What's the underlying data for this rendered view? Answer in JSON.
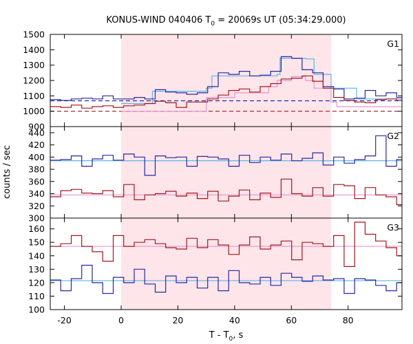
{
  "chart_data": {
    "type": "line",
    "title": {
      "main": "KONUS-WIND 040406 T",
      "sub": "0",
      "rest": " = 20069s UT (05:34:29.000)"
    },
    "xlabel": {
      "main": "T - T",
      "sub": "0",
      "rest": ", s"
    },
    "ylabel": "counts / sec",
    "xlim": [
      -25,
      99
    ],
    "xticks": [
      -20,
      0,
      20,
      40,
      60,
      80
    ],
    "shaded_interval": [
      0,
      74
    ],
    "colors": {
      "blue": "#2626a6",
      "red": "#a3161c",
      "lightblue": "#5cb4e8",
      "pink": "#e494d4",
      "shade": "#fde5e9"
    },
    "panels": [
      {
        "label": "G1",
        "ylim": [
          900,
          1500
        ],
        "yticks": [
          900,
          1000,
          1100,
          1200,
          1300,
          1400,
          1500
        ],
        "series": [
          {
            "color": "blue",
            "x": [
              -25,
              -21.3,
              -17.6,
              -13.9,
              -10.2,
              -6.5,
              -2.8,
              0.9,
              4.6,
              8.3,
              12,
              15.7,
              19.4,
              23.1,
              26.8,
              30.5,
              34.2,
              37.9,
              41.6,
              45.3,
              49,
              52.7,
              56.4,
              60.1,
              63.8,
              67.5,
              71.2,
              74.9,
              78.6,
              82.3,
              86,
              89.7,
              93.4,
              97.1
            ],
            "y": [
              1075,
              1070,
              1080,
              1085,
              1080,
              1100,
              1080,
              1080,
              1090,
              1080,
              1140,
              1125,
              1120,
              1110,
              1120,
              1160,
              1250,
              1240,
              1260,
              1230,
              1235,
              1260,
              1355,
              1345,
              1270,
              1250,
              1160,
              1145,
              1080,
              1085,
              1135,
              1100,
              1120,
              1090
            ]
          },
          {
            "color": "red",
            "x": [
              -25,
              -21.3,
              -17.6,
              -13.9,
              -10.2,
              -6.5,
              -2.8,
              0.9,
              4.6,
              8.3,
              12,
              15.7,
              19.4,
              23.1,
              26.8,
              30.5,
              34.2,
              37.9,
              41.6,
              45.3,
              49,
              52.7,
              56.4,
              60.1,
              63.8,
              67.5,
              71.2,
              74.9,
              78.6,
              82.3,
              86,
              89.7,
              93.4,
              97.1
            ],
            "y": [
              1030,
              1025,
              1040,
              1020,
              1030,
              1035,
              1025,
              1035,
              1040,
              1050,
              1065,
              1055,
              1025,
              1060,
              1060,
              1080,
              1105,
              1135,
              1145,
              1125,
              1160,
              1180,
              1210,
              1215,
              1230,
              1195,
              1150,
              1090,
              1070,
              1060,
              1055,
              1075,
              1080,
              1070
            ]
          },
          {
            "color": "lightblue",
            "x": [
              0,
              11,
              30,
              32,
              55,
              56,
              65,
              68,
              74,
              76,
              83,
              96,
              99
            ],
            "y": [
              1050,
              1130,
              1150,
              1230,
              1240,
              1345,
              1340,
              1240,
              1150,
              1150,
              1080,
              1080,
              1080
            ]
          },
          {
            "color": "pink",
            "x": [
              0,
              20,
              30,
              40,
              52,
              55,
              60,
              65,
              68,
              74,
              76,
              99
            ],
            "y": [
              1000,
              1000,
              1090,
              1120,
              1160,
              1200,
              1225,
              1200,
              1150,
              1060,
              1030,
              1030
            ]
          },
          {
            "color": "blue",
            "dash": "6,4",
            "x": [
              -25,
              99
            ],
            "y": [
              1068,
              1068
            ]
          },
          {
            "color": "red",
            "dash": "6,4",
            "x": [
              -25,
              99
            ],
            "y": [
              1000,
              1000
            ]
          }
        ]
      },
      {
        "label": "G2",
        "ylim": [
          300,
          450
        ],
        "yticks": [
          300,
          320,
          340,
          360,
          380,
          400,
          420,
          440
        ],
        "series": [
          {
            "color": "blue",
            "x": [
              -25,
              -21.3,
              -17.6,
              -13.9,
              -10.2,
              -6.5,
              -2.8,
              0.9,
              4.6,
              8.3,
              12,
              15.7,
              19.4,
              23.1,
              26.8,
              30.5,
              34.2,
              37.9,
              41.6,
              45.3,
              49,
              52.7,
              56.4,
              60.1,
              63.8,
              67.5,
              71.2,
              74.9,
              78.6,
              82.3,
              86,
              89.7,
              93.4,
              97.1
            ],
            "y": [
              395,
              396,
              402,
              385,
              397,
              403,
              395,
              405,
              400,
              370,
              402,
              399,
              400,
              385,
              401,
              400,
              397,
              385,
              403,
              391,
              400,
              395,
              405,
              394,
              398,
              407,
              387,
              400,
              390,
              396,
              402,
              435,
              385,
              396
            ]
          },
          {
            "color": "red",
            "x": [
              -25,
              -21.3,
              -17.6,
              -13.9,
              -10.2,
              -6.5,
              -2.8,
              0.9,
              4.6,
              8.3,
              12,
              15.7,
              19.4,
              23.1,
              26.8,
              30.5,
              34.2,
              37.9,
              41.6,
              45.3,
              49,
              52.7,
              56.4,
              60.1,
              63.8,
              67.5,
              71.2,
              74.9,
              78.6,
              82.3,
              86,
              89.7,
              93.4,
              97.1
            ],
            "y": [
              335,
              345,
              347,
              341,
              340,
              345,
              335,
              355,
              330,
              338,
              340,
              344,
              336,
              341,
              332,
              344,
              328,
              336,
              346,
              330,
              341,
              334,
              364,
              340,
              336,
              350,
              336,
              355,
              353,
              332,
              350,
              338,
              335,
              322
            ]
          },
          {
            "color": "lightblue",
            "x": [
              -25,
              99
            ],
            "y": [
              394,
              394
            ]
          },
          {
            "color": "pink",
            "x": [
              -25,
              99
            ],
            "y": [
              338,
              338
            ]
          }
        ]
      },
      {
        "label": "G3",
        "ylim": [
          100,
          168
        ],
        "yticks": [
          100,
          110,
          120,
          130,
          140,
          150,
          160
        ],
        "series": [
          {
            "color": "blue",
            "x": [
              -25,
              -21.3,
              -17.6,
              -13.9,
              -10.2,
              -6.5,
              -2.8,
              0.9,
              4.6,
              8.3,
              12,
              15.7,
              19.4,
              23.1,
              26.8,
              30.5,
              34.2,
              37.9,
              41.6,
              45.3,
              49,
              52.7,
              56.4,
              60.1,
              63.8,
              67.5,
              71.2,
              74.9,
              78.6,
              82.3,
              86,
              89.7,
              93.4,
              97.1
            ],
            "y": [
              122,
              114,
              123,
              133,
              120,
              112,
              124,
              120,
              130,
              119,
              113,
              125,
              120,
              124,
              116,
              124,
              114,
              129,
              120,
              119,
              124,
              118,
              127,
              124,
              121,
              125,
              122,
              123,
              112,
              123,
              122,
              118,
              114,
              120
            ]
          },
          {
            "color": "red",
            "x": [
              -25,
              -21.3,
              -17.6,
              -13.9,
              -10.2,
              -6.5,
              -2.8,
              0.9,
              4.6,
              8.3,
              12,
              15.7,
              19.4,
              23.1,
              26.8,
              30.5,
              34.2,
              37.9,
              41.6,
              45.3,
              49,
              52.7,
              56.4,
              60.1,
              63.8,
              67.5,
              71.2,
              74.9,
              78.6,
              82.3,
              86,
              89.7,
              93.4,
              97.1
            ],
            "y": [
              147,
              149,
              155,
              147,
              143,
              136,
              155,
              147,
              150,
              152,
              149,
              146,
              145,
              153,
              146,
              152,
              148,
              141,
              148,
              154,
              145,
              148,
              151,
              137,
              150,
              149,
              147,
              155,
              132,
              165,
              156,
              151,
              146,
              140
            ]
          },
          {
            "color": "lightblue",
            "x": [
              -25,
              99
            ],
            "y": [
              121.5,
              121.5
            ]
          },
          {
            "color": "pink",
            "x": [
              -25,
              99
            ],
            "y": [
              147,
              147
            ]
          }
        ]
      }
    ]
  }
}
